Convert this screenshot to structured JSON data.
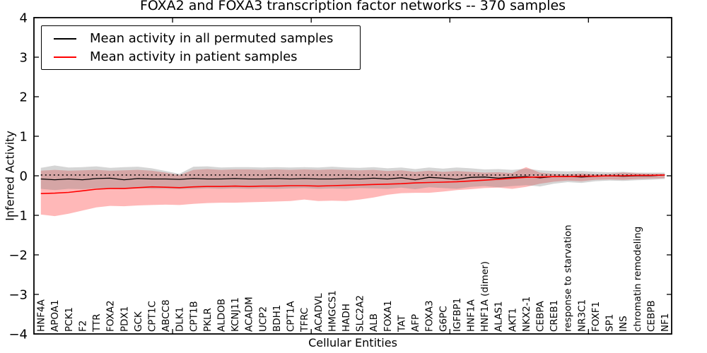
{
  "title": "FOXA2 and FOXA3 transcription factor networks -- 370 samples",
  "axes": {
    "ylabel": "Inferred Activity",
    "xlabel": "Cellular Entities"
  },
  "legend": {
    "items": [
      {
        "label": "Mean activity in all permuted samples",
        "color": "#000000"
      },
      {
        "label": "Mean activity in patient samples",
        "color": "#ff0000"
      }
    ]
  },
  "chart_data": {
    "type": "line",
    "title": "FOXA2 and FOXA3 transcription factor networks -- 370 samples",
    "xlabel": "Cellular Entities",
    "ylabel": "Inferred Activity",
    "ylim": [
      -4,
      4
    ],
    "yticks": [
      4,
      3,
      2,
      1,
      0,
      -1,
      -2,
      -3,
      -4
    ],
    "xticks_numeric": [
      10,
      20,
      30,
      40
    ],
    "xlim": [
      0,
      46
    ],
    "grid": false,
    "legend_position": "upper left",
    "background": "#ffffff",
    "categories": [
      "HNF4A",
      "APOA1",
      "PCK1",
      "F2",
      "TTR",
      "FOXA2",
      "PDX1",
      "GCK",
      "CPT1C",
      "ABCC8",
      "DLK1",
      "CPT1B",
      "PKLR",
      "ALDOB",
      "KCNJ11",
      "ACADM",
      "UCP2",
      "BDH1",
      "CPT1A",
      "TFRC",
      "ACADVL",
      "HMGCS1",
      "HADH",
      "SLC2A2",
      "ALB",
      "FOXA1",
      "TAT",
      "AFP",
      "FOXA3",
      "G6PC",
      "IGFBP1",
      "HNF1A",
      "HNF1A (dimer)",
      "ALAS1",
      "AKT1",
      "NKX2-1",
      "CEBPA",
      "CREB1",
      "response to starvation",
      "NR3C1",
      "FOXF1",
      "SP1",
      "INS",
      "chromatin remodeling",
      "CEBPB",
      "NF1"
    ],
    "reference_line": {
      "style": "dotted",
      "value": 0.02,
      "color": "#000000"
    },
    "series": [
      {
        "name": "Mean activity in all permuted samples",
        "color": "#000000",
        "band_color": "rgba(128,128,128,0.33)",
        "values": [
          -0.08,
          -0.1,
          -0.08,
          -0.1,
          -0.07,
          -0.06,
          -0.1,
          -0.07,
          -0.08,
          -0.08,
          -0.09,
          -0.07,
          -0.08,
          -0.08,
          -0.07,
          -0.08,
          -0.08,
          -0.07,
          -0.08,
          -0.07,
          -0.08,
          -0.08,
          -0.07,
          -0.08,
          -0.06,
          -0.08,
          -0.05,
          -0.1,
          -0.04,
          -0.06,
          -0.09,
          -0.04,
          -0.03,
          -0.06,
          -0.04,
          -0.02,
          -0.05,
          -0.02,
          -0.01,
          -0.03,
          -0.01,
          0.0,
          -0.01,
          0.0,
          0.0,
          0.02
        ],
        "band_upper": [
          0.2,
          0.26,
          0.21,
          0.22,
          0.24,
          0.2,
          0.22,
          0.23,
          0.19,
          0.12,
          0.05,
          0.23,
          0.24,
          0.21,
          0.22,
          0.22,
          0.21,
          0.22,
          0.21,
          0.22,
          0.21,
          0.23,
          0.21,
          0.2,
          0.22,
          0.19,
          0.21,
          0.17,
          0.21,
          0.18,
          0.21,
          0.19,
          0.16,
          0.17,
          0.15,
          0.18,
          0.14,
          0.12,
          0.11,
          0.12,
          0.1,
          0.09,
          0.1,
          0.08,
          0.08,
          0.08
        ],
        "band_lower": [
          -0.33,
          -0.36,
          -0.33,
          -0.34,
          -0.32,
          -0.33,
          -0.34,
          -0.32,
          -0.33,
          -0.33,
          -0.34,
          -0.33,
          -0.32,
          -0.33,
          -0.32,
          -0.33,
          -0.32,
          -0.33,
          -0.32,
          -0.31,
          -0.33,
          -0.32,
          -0.33,
          -0.31,
          -0.32,
          -0.33,
          -0.3,
          -0.34,
          -0.29,
          -0.31,
          -0.33,
          -0.28,
          -0.26,
          -0.29,
          -0.26,
          -0.24,
          -0.27,
          -0.2,
          -0.16,
          -0.18,
          -0.14,
          -0.12,
          -0.13,
          -0.11,
          -0.1,
          -0.08
        ]
      },
      {
        "name": "Mean activity in patient samples",
        "color": "#ff0000",
        "band_color": "rgba(255,0,0,0.28)",
        "values": [
          -0.45,
          -0.44,
          -0.42,
          -0.38,
          -0.34,
          -0.32,
          -0.32,
          -0.3,
          -0.28,
          -0.29,
          -0.3,
          -0.28,
          -0.27,
          -0.27,
          -0.26,
          -0.27,
          -0.26,
          -0.26,
          -0.25,
          -0.25,
          -0.26,
          -0.25,
          -0.24,
          -0.23,
          -0.22,
          -0.21,
          -0.2,
          -0.18,
          -0.17,
          -0.16,
          -0.15,
          -0.13,
          -0.11,
          -0.09,
          -0.06,
          -0.04,
          -0.03,
          -0.02,
          -0.02,
          -0.01,
          -0.01,
          0.0,
          0.0,
          0.01,
          0.01,
          0.02
        ],
        "band_upper": [
          0.13,
          0.15,
          0.13,
          0.14,
          0.15,
          0.13,
          0.14,
          0.15,
          0.13,
          0.08,
          0.02,
          0.15,
          0.17,
          0.15,
          0.16,
          0.16,
          0.15,
          0.16,
          0.15,
          0.16,
          0.15,
          0.16,
          0.15,
          0.14,
          0.15,
          0.12,
          0.14,
          0.1,
          0.13,
          0.1,
          0.12,
          0.1,
          0.08,
          0.09,
          0.07,
          0.22,
          0.08,
          0.05,
          0.04,
          0.06,
          0.04,
          0.05,
          0.08,
          0.06,
          0.05,
          0.05
        ],
        "band_lower": [
          -0.98,
          -1.02,
          -0.96,
          -0.88,
          -0.8,
          -0.76,
          -0.77,
          -0.75,
          -0.74,
          -0.73,
          -0.74,
          -0.71,
          -0.69,
          -0.68,
          -0.68,
          -0.67,
          -0.66,
          -0.65,
          -0.64,
          -0.6,
          -0.64,
          -0.63,
          -0.64,
          -0.6,
          -0.55,
          -0.48,
          -0.44,
          -0.43,
          -0.43,
          -0.4,
          -0.36,
          -0.34,
          -0.31,
          -0.3,
          -0.33,
          -0.28,
          -0.2,
          -0.15,
          -0.12,
          -0.14,
          -0.1,
          -0.09,
          -0.1,
          -0.08,
          -0.07,
          -0.06
        ]
      }
    ]
  }
}
